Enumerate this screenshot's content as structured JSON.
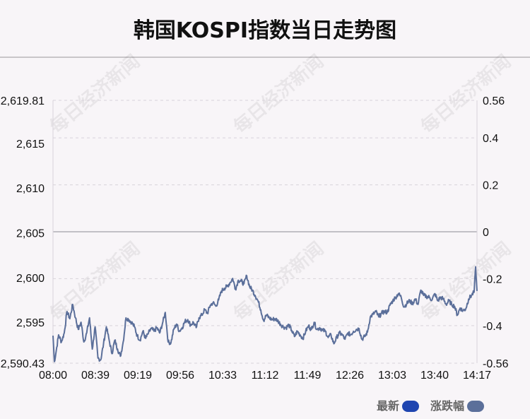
{
  "title": "韩国KOSPI指数当日走势图",
  "watermark_text": "每日经济新闻",
  "colors": {
    "line": "#5b6f9a",
    "legend_latest": "#1f45b0",
    "legend_change": "#5b6f9a",
    "grid": "#d8d3da",
    "zero_line": "#c2c0c6"
  },
  "legend": {
    "latest_label": "最新",
    "change_label": "涨跌幅"
  },
  "chart_data": {
    "type": "line",
    "title": "韩国KOSPI指数当日走势图",
    "x_tick_labels": [
      "08:00",
      "08:39",
      "09:19",
      "09:56",
      "10:33",
      "11:12",
      "11:49",
      "12:26",
      "13:03",
      "13:40",
      "14:17"
    ],
    "y_left_tick_labels": [
      "2,619.81",
      "2,615",
      "2,610",
      "2,605",
      "2,600",
      "2,595",
      "2,590.43"
    ],
    "y_left_tick_values": [
      2619.81,
      2615,
      2610,
      2605,
      2600,
      2595,
      2590.43
    ],
    "y_right_tick_labels": [
      "0.56",
      "0.4",
      "0.2",
      "0",
      "-0.2",
      "-0.4",
      "-0.56"
    ],
    "ylim_left": [
      2590.43,
      2619.81
    ],
    "ylim_right": [
      -0.56,
      0.56
    ],
    "grid": true,
    "legend_position": "bottom-right",
    "series": [
      {
        "name": "最新",
        "keypoints": [
          [
            0,
            2593.5
          ],
          [
            1,
            2590.6
          ],
          [
            2,
            2591.5
          ],
          [
            4,
            2593.6
          ],
          [
            6,
            2592.8
          ],
          [
            8,
            2593.8
          ],
          [
            10,
            2596.2
          ],
          [
            12,
            2595.4
          ],
          [
            14,
            2597.0
          ],
          [
            16,
            2595.5
          ],
          [
            18,
            2594.2
          ],
          [
            20,
            2595.0
          ],
          [
            22,
            2592.8
          ],
          [
            24,
            2593.8
          ],
          [
            26,
            2595.5
          ],
          [
            28,
            2592.0
          ],
          [
            30,
            2594.5
          ],
          [
            32,
            2591.0
          ],
          [
            34,
            2590.8
          ],
          [
            36,
            2592.6
          ],
          [
            38,
            2594.5
          ],
          [
            40,
            2593.0
          ],
          [
            42,
            2591.5
          ],
          [
            44,
            2593.0
          ],
          [
            46,
            2592.0
          ],
          [
            48,
            2591.2
          ],
          [
            50,
            2592.8
          ],
          [
            52,
            2595.5
          ],
          [
            54,
            2595.3
          ],
          [
            56,
            2595.0
          ],
          [
            58,
            2594.5
          ],
          [
            60,
            2593.5
          ],
          [
            62,
            2593.0
          ],
          [
            64,
            2594.0
          ],
          [
            66,
            2593.2
          ],
          [
            68,
            2593.8
          ],
          [
            70,
            2594.3
          ],
          [
            72,
            2594.0
          ],
          [
            74,
            2594.4
          ],
          [
            76,
            2593.8
          ],
          [
            78,
            2594.9
          ],
          [
            80,
            2596.1
          ],
          [
            82,
            2592.8
          ],
          [
            84,
            2592.7
          ],
          [
            86,
            2594.2
          ],
          [
            88,
            2594.8
          ],
          [
            90,
            2594.0
          ],
          [
            92,
            2594.4
          ],
          [
            94,
            2595.1
          ],
          [
            96,
            2595.3
          ],
          [
            98,
            2594.7
          ],
          [
            100,
            2595.0
          ],
          [
            102,
            2594.4
          ],
          [
            104,
            2595.5
          ],
          [
            106,
            2595.8
          ],
          [
            108,
            2596.4
          ],
          [
            110,
            2596.0
          ],
          [
            112,
            2596.9
          ],
          [
            114,
            2597.2
          ],
          [
            116,
            2596.8
          ],
          [
            118,
            2597.5
          ],
          [
            120,
            2598.5
          ],
          [
            122,
            2598.8
          ],
          [
            124,
            2599.0
          ],
          [
            126,
            2599.4
          ],
          [
            128,
            2599.9
          ],
          [
            130,
            2598.7
          ],
          [
            132,
            2599.7
          ],
          [
            134,
            2599.6
          ],
          [
            136,
            2599.3
          ],
          [
            138,
            2600.2
          ],
          [
            140,
            2599.0
          ],
          [
            142,
            2598.6
          ],
          [
            144,
            2598.0
          ],
          [
            146,
            2597.4
          ],
          [
            148,
            2596.4
          ],
          [
            150,
            2595.2
          ],
          [
            152,
            2595.8
          ],
          [
            154,
            2595.5
          ],
          [
            156,
            2595.3
          ],
          [
            158,
            2595.4
          ],
          [
            160,
            2595.2
          ],
          [
            162,
            2594.8
          ],
          [
            164,
            2594.5
          ],
          [
            166,
            2594.4
          ],
          [
            168,
            2594.7
          ],
          [
            170,
            2594.1
          ],
          [
            172,
            2593.4
          ],
          [
            174,
            2594.0
          ],
          [
            176,
            2593.6
          ],
          [
            178,
            2593.2
          ],
          [
            180,
            2594.0
          ],
          [
            182,
            2594.6
          ],
          [
            184,
            2594.2
          ],
          [
            186,
            2595.0
          ],
          [
            188,
            2594.2
          ],
          [
            190,
            2594.4
          ],
          [
            192,
            2594.1
          ],
          [
            194,
            2594.0
          ],
          [
            196,
            2593.3
          ],
          [
            198,
            2593.6
          ],
          [
            200,
            2592.6
          ],
          [
            202,
            2593.3
          ],
          [
            204,
            2593.8
          ],
          [
            206,
            2593.6
          ],
          [
            208,
            2593.1
          ],
          [
            210,
            2593.8
          ],
          [
            212,
            2593.6
          ],
          [
            214,
            2594.0
          ],
          [
            216,
            2594.2
          ],
          [
            218,
            2594.3
          ],
          [
            220,
            2593.1
          ],
          [
            222,
            2593.4
          ],
          [
            224,
            2593.9
          ],
          [
            226,
            2595.6
          ],
          [
            228,
            2595.9
          ],
          [
            230,
            2596.2
          ],
          [
            232,
            2595.6
          ],
          [
            234,
            2596.0
          ],
          [
            236,
            2596.2
          ],
          [
            238,
            2596.1
          ],
          [
            240,
            2596.9
          ],
          [
            242,
            2597.4
          ],
          [
            244,
            2597.8
          ],
          [
            246,
            2598.2
          ],
          [
            248,
            2597.8
          ],
          [
            250,
            2596.7
          ],
          [
            252,
            2597.1
          ],
          [
            254,
            2597.4
          ],
          [
            256,
            2597.1
          ],
          [
            258,
            2597.6
          ],
          [
            260,
            2597.0
          ],
          [
            262,
            2598.6
          ],
          [
            264,
            2598.0
          ],
          [
            266,
            2597.9
          ],
          [
            268,
            2597.8
          ],
          [
            270,
            2597.5
          ],
          [
            272,
            2598.2
          ],
          [
            274,
            2597.4
          ],
          [
            276,
            2597.8
          ],
          [
            278,
            2597.6
          ],
          [
            280,
            2597.0
          ],
          [
            282,
            2597.4
          ],
          [
            284,
            2597.0
          ],
          [
            286,
            2596.8
          ],
          [
            288,
            2595.8
          ],
          [
            290,
            2596.6
          ],
          [
            292,
            2596.3
          ],
          [
            294,
            2596.5
          ],
          [
            296,
            2597.6
          ],
          [
            298,
            2598.0
          ],
          [
            300,
            2598.4
          ],
          [
            301,
            2601.2
          ],
          [
            302,
            2598.5
          ]
        ]
      }
    ]
  }
}
